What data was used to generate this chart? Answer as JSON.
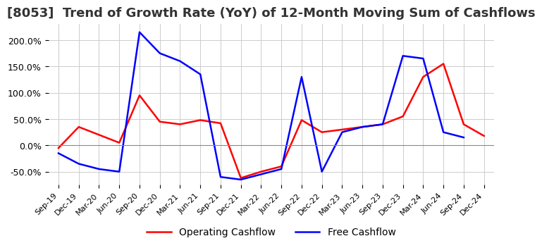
{
  "title": "[8053]  Trend of Growth Rate (YoY) of 12-Month Moving Sum of Cashflows",
  "title_fontsize": 13,
  "xlabel": "",
  "ylabel": "",
  "ylim": [
    -75,
    230
  ],
  "yticks": [
    -50,
    0,
    50,
    100,
    150,
    200
  ],
  "ytick_labels": [
    "-50.0%",
    "0.0%",
    "50.0%",
    "100.0%",
    "150.0%",
    "200.0%"
  ],
  "background_color": "#ffffff",
  "grid_color": "#cccccc",
  "x_labels": [
    "Sep-19",
    "Dec-19",
    "Mar-20",
    "Jun-20",
    "Sep-20",
    "Dec-20",
    "Mar-21",
    "Jun-21",
    "Sep-21",
    "Dec-21",
    "Mar-22",
    "Jun-22",
    "Sep-22",
    "Dec-22",
    "Mar-23",
    "Jun-23",
    "Sep-23",
    "Dec-23",
    "Mar-24",
    "Jun-24",
    "Sep-24",
    "Dec-24"
  ],
  "operating_cashflow": [
    -5,
    35,
    20,
    5,
    95,
    45,
    40,
    48,
    42,
    -62,
    -50,
    -40,
    48,
    25,
    30,
    35,
    40,
    55,
    130,
    155,
    40,
    18
  ],
  "free_cashflow": [
    -15,
    -35,
    -45,
    -50,
    215,
    175,
    160,
    135,
    -60,
    -65,
    -55,
    -45,
    130,
    -50,
    25,
    35,
    40,
    170,
    165,
    25,
    15,
    null
  ],
  "op_color": "#ff0000",
  "fc_color": "#0000ff",
  "line_width": 1.8,
  "legend_loc": "lower center",
  "legend_ncol": 2
}
